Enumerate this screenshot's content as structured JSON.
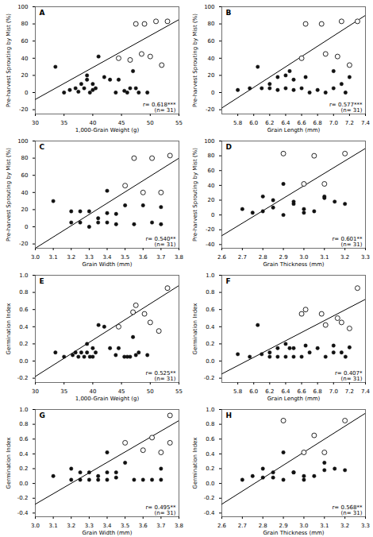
{
  "chart_data": [
    {
      "type": "scatter",
      "panel_label": "A",
      "annotation": "r= 0.618***\n(n= 31)",
      "xlabel": "1,000-Grain Weight (g)",
      "ylabel": "Pre-harvest Sprouting by Mist (%)",
      "xlim": [
        30,
        55
      ],
      "ylim": [
        -25,
        100
      ],
      "xticks": [
        30,
        35,
        40,
        45,
        50,
        55
      ],
      "yticks": [
        -20,
        0,
        20,
        40,
        60,
        80,
        100
      ],
      "series": [
        {
          "type": "line",
          "color": "black",
          "x": [
            30,
            55
          ],
          "values": [
            -8,
            85
          ]
        },
        {
          "type": "scatter",
          "marker": "filled_circle",
          "color": "#111111",
          "x": [
            33.5,
            35,
            36,
            37,
            37.5,
            38,
            38.5,
            39,
            39,
            39.5,
            40,
            40,
            40.5,
            41,
            42,
            43,
            44,
            44.5,
            45.5,
            46,
            46.5,
            47,
            47.5,
            48,
            49.5
          ],
          "values": [
            30,
            0,
            3,
            5,
            1,
            10,
            5,
            15,
            20,
            0,
            3,
            10,
            5,
            42,
            18,
            15,
            0,
            15,
            2,
            0,
            5,
            25,
            5,
            0,
            0
          ]
        },
        {
          "type": "scatter",
          "marker": "open_circle",
          "color": "#111111",
          "x": [
            44.5,
            46.5,
            47.5,
            48.5,
            49,
            50,
            51,
            52,
            53
          ],
          "values": [
            40,
            38,
            80,
            45,
            80,
            42,
            83,
            32,
            83
          ]
        }
      ]
    },
    {
      "type": "scatter",
      "panel_label": "B",
      "annotation": "r= 0.577***\n(n= 31)",
      "xlabel": "Grain Length (mm)",
      "ylabel": "Pre-harvest Sprouting by Mist (%)",
      "xlim": [
        5.6,
        7.4
      ],
      "ylim": [
        -25,
        100
      ],
      "xticks": [
        5.8,
        {
          "value": 6.0,
          "label": "6.0"
        },
        6.2,
        6.4,
        6.6,
        6.8,
        {
          "value": 7.0,
          "label": "7.0"
        },
        7.2,
        7.4
      ],
      "yticks": [
        -20,
        0,
        20,
        40,
        60,
        80,
        100
      ],
      "series": [
        {
          "type": "line",
          "color": "black",
          "x": [
            5.6,
            7.4
          ],
          "values": [
            -18,
            90
          ]
        },
        {
          "type": "scatter",
          "marker": "filled_circle",
          "color": "#111111",
          "x": [
            5.8,
            5.95,
            6.05,
            6.1,
            6.2,
            6.2,
            6.3,
            6.3,
            6.4,
            6.4,
            6.45,
            6.5,
            6.5,
            6.6,
            6.65,
            6.7,
            6.8,
            6.9,
            7.0,
            7.0,
            7.1,
            7.15,
            7.2
          ],
          "values": [
            3,
            5,
            30,
            5,
            5,
            10,
            3,
            18,
            20,
            5,
            25,
            3,
            15,
            5,
            18,
            0,
            3,
            0,
            5,
            25,
            10,
            0,
            18
          ]
        },
        {
          "type": "scatter",
          "marker": "open_circle",
          "color": "#111111",
          "x": [
            6.6,
            6.65,
            6.85,
            6.9,
            7.05,
            7.1,
            7.2,
            7.3
          ],
          "values": [
            40,
            80,
            80,
            45,
            42,
            83,
            32,
            83
          ]
        }
      ]
    },
    {
      "type": "scatter",
      "panel_label": "C",
      "annotation": "r= 0.540**\n(n= 31)",
      "xlabel": "Grain Width (mm)",
      "ylabel": "Pre-harvest Sprouting by Mist (%)",
      "xlim": [
        3.0,
        3.8
      ],
      "ylim": [
        -25,
        100
      ],
      "xticks": [
        {
          "value": 3.0,
          "label": "3.0"
        },
        3.1,
        3.2,
        3.3,
        3.4,
        3.5,
        3.6,
        3.7,
        3.8
      ],
      "yticks": [
        -20,
        0,
        20,
        40,
        60,
        80,
        100
      ],
      "series": [
        {
          "type": "line",
          "color": "black",
          "x": [
            3.0,
            3.8
          ],
          "values": [
            -25,
            80
          ]
        },
        {
          "type": "scatter",
          "marker": "filled_circle",
          "color": "#111111",
          "x": [
            3.1,
            3.2,
            3.2,
            3.25,
            3.25,
            3.3,
            3.3,
            3.35,
            3.35,
            3.4,
            3.4,
            3.4,
            3.45,
            3.45,
            3.5,
            3.55,
            3.6,
            3.65,
            3.7,
            3.7
          ],
          "values": [
            30,
            5,
            18,
            5,
            18,
            18,
            0,
            5,
            10,
            42,
            16,
            5,
            3,
            15,
            25,
            3,
            25,
            5,
            3,
            23
          ]
        },
        {
          "type": "scatter",
          "marker": "open_circle",
          "color": "#111111",
          "x": [
            3.5,
            3.55,
            3.6,
            3.65,
            3.7,
            3.75
          ],
          "values": [
            48,
            80,
            40,
            80,
            40,
            83
          ]
        }
      ]
    },
    {
      "type": "scatter",
      "panel_label": "D",
      "annotation": "r= 0.601**\n(n= 31)",
      "xlabel": "Grain Thickness (mm)",
      "ylabel": "Pre-harvest Sprouting by Mist (%)",
      "xlim": [
        2.6,
        3.3
      ],
      "ylim": [
        -45,
        100
      ],
      "xticks": [
        2.6,
        2.7,
        2.8,
        2.9,
        {
          "value": 3.0,
          "label": "3.0"
        },
        3.1,
        3.2,
        3.3
      ],
      "yticks": [
        -40,
        -20,
        0,
        20,
        40,
        60,
        80,
        100
      ],
      "series": [
        {
          "type": "line",
          "color": "black",
          "x": [
            2.6,
            3.3
          ],
          "values": [
            -28,
            90
          ]
        },
        {
          "type": "scatter",
          "marker": "filled_circle",
          "color": "#111111",
          "x": [
            2.7,
            2.75,
            2.8,
            2.8,
            2.85,
            2.85,
            2.9,
            2.9,
            2.95,
            2.95,
            3.0,
            3.0,
            3.05,
            3.1,
            3.1,
            3.15,
            3.2
          ],
          "values": [
            8,
            3,
            5,
            25,
            20,
            10,
            0,
            42,
            15,
            18,
            3,
            8,
            5,
            25,
            23,
            18,
            15
          ]
        },
        {
          "type": "scatter",
          "marker": "open_circle",
          "color": "#111111",
          "x": [
            2.9,
            3.0,
            3.05,
            3.1,
            3.2
          ],
          "values": [
            83,
            42,
            80,
            42,
            83
          ]
        }
      ]
    },
    {
      "type": "scatter",
      "panel_label": "E",
      "annotation": "r= 0.525**\n(n= 31)",
      "xlabel": "1,000-Grain Weight (g)",
      "ylabel": "Germination Index",
      "xlim": [
        30,
        55
      ],
      "ylim": [
        -0.25,
        1.0
      ],
      "xticks": [
        30,
        35,
        40,
        45,
        50,
        55
      ],
      "yticks": [
        -0.2,
        {
          "value": 0.0,
          "label": "0.0"
        },
        0.2,
        0.4,
        0.6,
        0.8,
        {
          "value": 1.0,
          "label": "1.0"
        }
      ],
      "series": [
        {
          "type": "line",
          "color": "black",
          "x": [
            30,
            55
          ],
          "values": [
            -0.18,
            0.88
          ]
        },
        {
          "type": "scatter",
          "marker": "filled_circle",
          "color": "#111111",
          "x": [
            33.5,
            35,
            36.5,
            37,
            37.5,
            38,
            38.5,
            39,
            39,
            39.5,
            40,
            40,
            40.5,
            41,
            42,
            43,
            44,
            44.5,
            45.5,
            46,
            46.5,
            47,
            47.5,
            48,
            49.5
          ],
          "values": [
            0.1,
            0.05,
            0.07,
            0.1,
            0.05,
            0.1,
            0.05,
            0.1,
            0.2,
            0.05,
            0.05,
            0.15,
            0.1,
            0.42,
            0.4,
            0.15,
            0.07,
            0.15,
            0.05,
            0.05,
            0.05,
            0.28,
            0.07,
            0.1,
            0.07
          ]
        },
        {
          "type": "scatter",
          "marker": "open_circle",
          "color": "#111111",
          "x": [
            44.5,
            47,
            47.5,
            49,
            50,
            51.5,
            53
          ],
          "values": [
            0.4,
            0.57,
            0.65,
            0.55,
            0.45,
            0.35,
            0.85
          ]
        }
      ]
    },
    {
      "type": "scatter",
      "panel_label": "F",
      "annotation": "r= 0.407*\n(n= 31)",
      "xlabel": "Grain Length (mm)",
      "ylabel": "Germination Index",
      "xlim": [
        5.6,
        7.4
      ],
      "ylim": [
        -0.25,
        1.0
      ],
      "xticks": [
        5.8,
        {
          "value": 6.0,
          "label": "6.0"
        },
        6.2,
        6.4,
        6.6,
        6.8,
        {
          "value": 7.0,
          "label": "7.0"
        },
        7.2,
        7.4
      ],
      "yticks": [
        -0.2,
        {
          "value": 0.0,
          "label": "0.0"
        },
        0.2,
        0.4,
        0.6,
        0.8,
        {
          "value": 1.0,
          "label": "1.0"
        }
      ],
      "series": [
        {
          "type": "line",
          "color": "black",
          "x": [
            5.6,
            7.4
          ],
          "values": [
            -0.15,
            0.72
          ]
        },
        {
          "type": "scatter",
          "marker": "filled_circle",
          "color": "#111111",
          "x": [
            5.8,
            5.95,
            6.05,
            6.1,
            6.2,
            6.2,
            6.3,
            6.3,
            6.4,
            6.4,
            6.45,
            6.5,
            6.5,
            6.6,
            6.65,
            6.7,
            6.8,
            6.9,
            7.0,
            7.0,
            7.1,
            7.15,
            7.2
          ],
          "values": [
            0.08,
            0.05,
            0.42,
            0.08,
            0.05,
            0.1,
            0.05,
            0.15,
            0.2,
            0.05,
            0.15,
            0.05,
            0.15,
            0.05,
            0.18,
            0.1,
            0.15,
            0.05,
            0.1,
            0.18,
            0.1,
            0.05,
            0.16
          ]
        },
        {
          "type": "scatter",
          "marker": "open_circle",
          "color": "#111111",
          "x": [
            6.6,
            6.65,
            6.85,
            6.9,
            7.05,
            7.1,
            7.2,
            7.3
          ],
          "values": [
            0.55,
            0.6,
            0.55,
            0.42,
            0.5,
            0.45,
            0.38,
            0.85
          ]
        }
      ]
    },
    {
      "type": "scatter",
      "panel_label": "G",
      "annotation": "r= 0.495**\n(n= 31)",
      "xlabel": "Grain Width (mm)",
      "ylabel": "Germination Index",
      "xlim": [
        3.0,
        3.8
      ],
      "ylim": [
        -0.45,
        1.0
      ],
      "xticks": [
        {
          "value": 3.0,
          "label": "3.0"
        },
        3.1,
        3.2,
        3.3,
        3.4,
        3.5,
        3.6,
        3.7,
        3.8
      ],
      "yticks": [
        -0.4,
        -0.2,
        {
          "value": 0.0,
          "label": "0.0"
        },
        0.2,
        0.4,
        0.6,
        0.8,
        {
          "value": 1.0,
          "label": "1.0"
        }
      ],
      "series": [
        {
          "type": "line",
          "color": "black",
          "x": [
            3.0,
            3.8
          ],
          "values": [
            -0.28,
            0.85
          ]
        },
        {
          "type": "scatter",
          "marker": "filled_circle",
          "color": "#111111",
          "x": [
            3.1,
            3.2,
            3.2,
            3.25,
            3.25,
            3.3,
            3.3,
            3.35,
            3.35,
            3.4,
            3.4,
            3.4,
            3.45,
            3.45,
            3.5,
            3.55,
            3.6,
            3.65,
            3.7,
            3.7
          ],
          "values": [
            0.1,
            0.05,
            0.2,
            0.05,
            0.15,
            0.15,
            0.05,
            0.1,
            0.05,
            0.42,
            0.15,
            0.05,
            0.08,
            0.15,
            0.28,
            0.05,
            0.05,
            0.05,
            0.05,
            0.2
          ]
        },
        {
          "type": "scatter",
          "marker": "open_circle",
          "color": "#111111",
          "x": [
            3.5,
            3.6,
            3.65,
            3.7,
            3.75,
            3.75
          ],
          "values": [
            0.55,
            0.45,
            0.62,
            0.42,
            0.92,
            0.55
          ]
        }
      ]
    },
    {
      "type": "scatter",
      "panel_label": "H",
      "annotation": "r= 0.568**\n(n= 31)",
      "xlabel": "Grain Thickness (mm)",
      "ylabel": "Germination Index",
      "xlim": [
        2.6,
        3.3
      ],
      "ylim": [
        -0.45,
        1.0
      ],
      "xticks": [
        2.6,
        2.7,
        2.8,
        2.9,
        {
          "value": 3.0,
          "label": "3.0"
        },
        3.1,
        3.2,
        3.3
      ],
      "yticks": [
        -0.4,
        -0.2,
        {
          "value": 0.0,
          "label": "0.0"
        },
        0.2,
        0.4,
        0.6,
        0.8,
        {
          "value": 1.0,
          "label": "1.0"
        }
      ],
      "series": [
        {
          "type": "line",
          "color": "black",
          "x": [
            2.6,
            3.3
          ],
          "values": [
            -0.28,
            0.95
          ]
        },
        {
          "type": "scatter",
          "marker": "filled_circle",
          "color": "#111111",
          "x": [
            2.7,
            2.75,
            2.8,
            2.8,
            2.85,
            2.85,
            2.9,
            2.9,
            2.95,
            2.95,
            3.0,
            3.0,
            3.05,
            3.1,
            3.1,
            3.15,
            3.2
          ],
          "values": [
            0.05,
            0.1,
            0.08,
            0.2,
            0.15,
            0.08,
            0.05,
            0.42,
            0.15,
            0.15,
            0.05,
            0.1,
            0.1,
            0.28,
            0.18,
            0.2,
            0.18
          ]
        },
        {
          "type": "scatter",
          "marker": "open_circle",
          "color": "#111111",
          "x": [
            2.9,
            3.0,
            3.05,
            3.1,
            3.2
          ],
          "values": [
            0.85,
            0.42,
            0.65,
            0.42,
            0.85
          ]
        }
      ]
    }
  ]
}
